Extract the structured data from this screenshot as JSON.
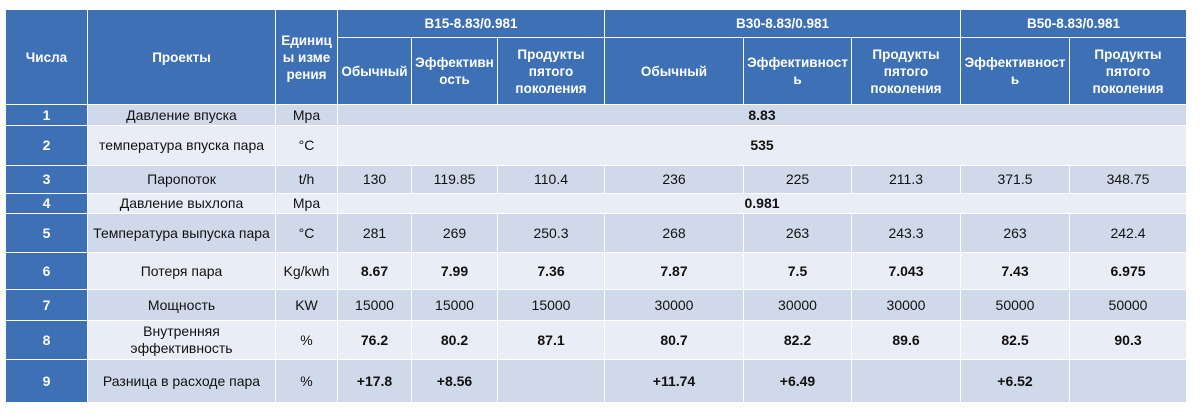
{
  "header": {
    "number": "Числа",
    "project": "Проекты",
    "unit": "Единицы измерения",
    "groups": [
      {
        "name": "B15-8.83/0.981",
        "columns": [
          "Обычный",
          "Эффективность",
          "Продукты пятого поколения"
        ]
      },
      {
        "name": "B30-8.83/0.981",
        "columns": [
          "Обычный",
          "Эффективность",
          "Продукты пятого поколения"
        ]
      },
      {
        "name": "B50-8.83/0.981",
        "columns": [
          "Эффективность",
          "Продукты пятого поколения"
        ]
      }
    ]
  },
  "rows": [
    {
      "number": 1,
      "project": "Давление впуска",
      "unit": "Mpa",
      "bold": true,
      "values": [
        8.83
      ]
    },
    {
      "number": 2,
      "project": "температура впуска пара",
      "unit": "°C",
      "bold": true,
      "values": [
        535
      ]
    },
    {
      "number": 3,
      "project": "Паропоток",
      "unit": "t/h",
      "bold": false,
      "values": [
        130,
        119.85,
        110.4,
        236,
        225,
        211.3,
        371.5,
        348.75
      ]
    },
    {
      "number": 4,
      "project": "Давление выхлопа",
      "unit": "Mpa",
      "bold": true,
      "values": [
        0.981
      ]
    },
    {
      "number": 5,
      "project": "Температура выпуска пара",
      "unit": "°C",
      "bold": false,
      "values": [
        281,
        269,
        250.3,
        268,
        263,
        243.3,
        263,
        242.4
      ]
    },
    {
      "number": 6,
      "project": "Потеря пара",
      "unit": "Kg/kwh",
      "bold": true,
      "values": [
        8.67,
        7.99,
        7.36,
        7.87,
        7.5,
        7.043,
        7.43,
        6.975
      ]
    },
    {
      "number": 7,
      "project": "Мощность",
      "unit": "KW",
      "bold": false,
      "values": [
        15000,
        15000,
        15000,
        30000,
        30000,
        30000,
        50000,
        50000
      ]
    },
    {
      "number": 8,
      "project": "Внутренняя эффективность",
      "unit": "%",
      "bold": true,
      "values": [
        76.2,
        80.2,
        87.1,
        80.7,
        82.2,
        89.6,
        82.5,
        90.3
      ]
    },
    {
      "number": 9,
      "project": "Разница в расходе пара",
      "unit": "%",
      "bold": true,
      "values": [
        "+17.8",
        "+8.56",
        null,
        "+11.74",
        "+6.49",
        null,
        "+6.52",
        null
      ]
    }
  ]
}
